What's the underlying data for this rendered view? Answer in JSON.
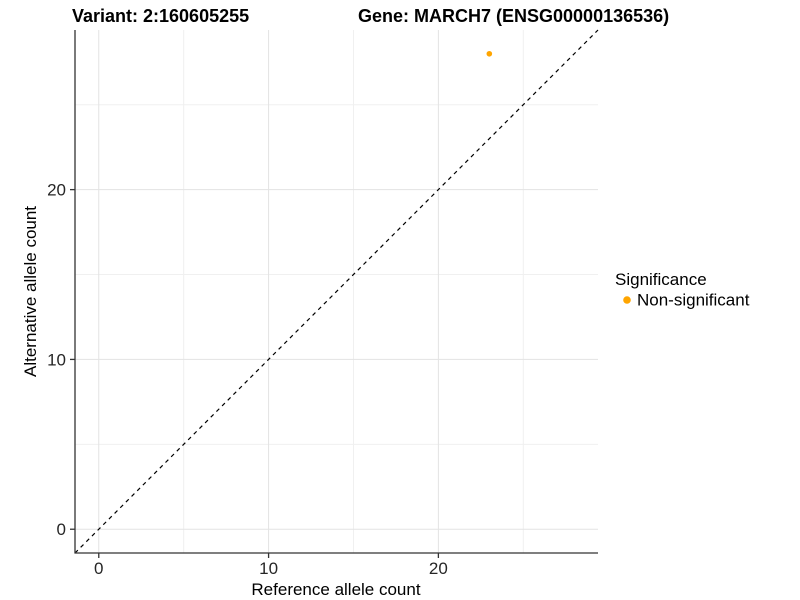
{
  "window": {
    "background": "#FFFFFF"
  },
  "chart_data": {
    "type": "scatter",
    "title_left": "Variant: 2:160605255",
    "title_right": "Gene: MARCH7 (ENSG00000136536)",
    "xlabel": "Reference allele count",
    "ylabel": "Alternative allele count",
    "xlim": [
      -1.4,
      29.4
    ],
    "ylim": [
      -1.4,
      29.4
    ],
    "x_major_ticks": [
      0,
      10,
      20
    ],
    "y_major_ticks": [
      0,
      10,
      20
    ],
    "x_minor_ticks": [
      5,
      15,
      25
    ],
    "y_minor_ticks": [
      5,
      15,
      25
    ],
    "grid": "major and minor gridlines, light gray on white panel",
    "points": [
      {
        "x": 23,
        "y": 28,
        "series": "Non-significant"
      }
    ],
    "point_radius_px": 2.8,
    "reference_line": {
      "type": "identity",
      "from": [
        -1.4,
        -1.4
      ],
      "to": [
        29.4,
        29.4
      ],
      "style": "dashed",
      "color": "#000000"
    },
    "legend": {
      "title": "Significance",
      "position": "right",
      "items": [
        {
          "label": "Non-significant",
          "color": "#FFA500",
          "marker": "circle-icon"
        }
      ]
    }
  },
  "colors": {
    "background": "#FFFFFF",
    "axis_line": "#333333",
    "tick_mark": "#333333",
    "tick_text": "#262626",
    "grid_major": "#E3E3E3",
    "grid_minor": "#F0F0F0",
    "point": "#FFA500",
    "reference_line": "#000000"
  }
}
